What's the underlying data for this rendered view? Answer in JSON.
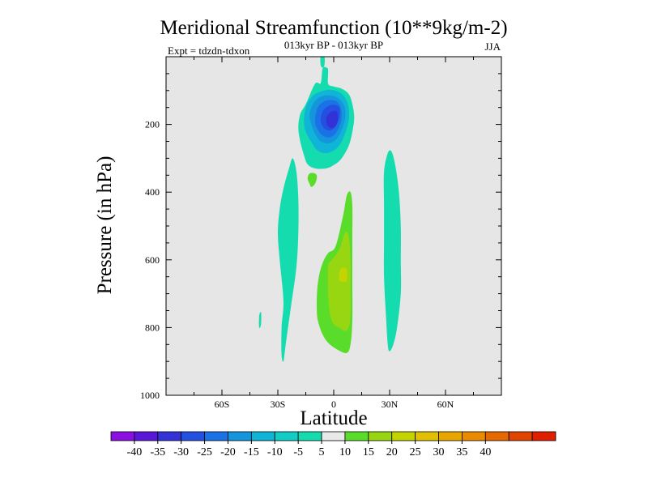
{
  "chart_data": {
    "type": "contour",
    "title": "Meridional Streamfunction (10**9kg/m-2)",
    "subtitle": "013kyr BP - 013kyr BP",
    "left_label": "Expt = tdzdn-tdxon",
    "right_label": "JJA",
    "xlabel": "Latitude",
    "ylabel": "Pressure (in hPa)",
    "xlim": [
      -90,
      90
    ],
    "ylim": [
      1000,
      0
    ],
    "x_ticks": [
      {
        "value": -60,
        "label": "60S"
      },
      {
        "value": -30,
        "label": "30S"
      },
      {
        "value": 0,
        "label": "0"
      },
      {
        "value": 30,
        "label": "30N"
      },
      {
        "value": 60,
        "label": "60N"
      }
    ],
    "y_ticks": [
      {
        "value": 200,
        "label": "200"
      },
      {
        "value": 400,
        "label": "400"
      },
      {
        "value": 600,
        "label": "600"
      },
      {
        "value": 800,
        "label": "800"
      },
      {
        "value": 1000,
        "label": "1000"
      }
    ],
    "levels": [
      "-40",
      "-35",
      "-30",
      "-25",
      "-20",
      "-15",
      "-10",
      "-5",
      "5",
      "10",
      "15",
      "20",
      "25",
      "30",
      "35",
      "40"
    ],
    "colors": [
      "#8a0fe0",
      "#5a17d8",
      "#3232d6",
      "#2350e0",
      "#1a72e6",
      "#1495dc",
      "#10b4d6",
      "#12ccc6",
      "#15dcaf",
      "#e8e8e8",
      "#5add2a",
      "#98d612",
      "#c4d400",
      "#e0c000",
      "#eaa600",
      "#ea8a00",
      "#e66800",
      "#e04400",
      "#e01e00"
    ],
    "background_color": "#e6e6e6",
    "regions": [
      {
        "name": "neg-cell-outer-5",
        "level": "-5",
        "color": "#15dcaf",
        "points": [
          [
            -10,
            80
          ],
          [
            -7,
            78
          ],
          [
            -6,
            35
          ],
          [
            -4,
            32
          ],
          [
            -3,
            40
          ],
          [
            -3,
            80
          ],
          [
            0,
            88
          ],
          [
            4,
            94
          ],
          [
            8,
            110
          ],
          [
            10,
            140
          ],
          [
            11,
            180
          ],
          [
            10,
            222
          ],
          [
            8,
            264
          ],
          [
            4,
            302
          ],
          [
            0,
            320
          ],
          [
            -4,
            330
          ],
          [
            -10,
            330
          ],
          [
            -14,
            318
          ],
          [
            -16,
            290
          ],
          [
            -18,
            250
          ],
          [
            -19,
            210
          ],
          [
            -18,
            170
          ],
          [
            -15,
            140
          ]
        ]
      },
      {
        "name": "neg-cell-10",
        "level": "-10",
        "color": "#10b4d6",
        "points": [
          [
            -15,
            150
          ],
          [
            -12,
            120
          ],
          [
            -8,
            105
          ],
          [
            -3,
            98
          ],
          [
            2,
            102
          ],
          [
            6,
            120
          ],
          [
            8,
            150
          ],
          [
            8,
            190
          ],
          [
            6,
            228
          ],
          [
            3,
            262
          ],
          [
            -1,
            280
          ],
          [
            -5,
            285
          ],
          [
            -9,
            276
          ],
          [
            -12,
            252
          ],
          [
            -15,
            222
          ],
          [
            -16,
            190
          ]
        ]
      },
      {
        "name": "neg-cell-15",
        "level": "-15",
        "color": "#1495dc",
        "points": [
          [
            -12,
            150
          ],
          [
            -9,
            125
          ],
          [
            -5,
            115
          ],
          [
            -1,
            115
          ],
          [
            3,
            125
          ],
          [
            6,
            150
          ],
          [
            6,
            185
          ],
          [
            4,
            220
          ],
          [
            1,
            246
          ],
          [
            -3,
            256
          ],
          [
            -7,
            250
          ],
          [
            -10,
            228
          ],
          [
            -12,
            200
          ],
          [
            -13,
            175
          ]
        ]
      },
      {
        "name": "neg-cell-20",
        "level": "-20",
        "color": "#1a72e6",
        "points": [
          [
            -9,
            155
          ],
          [
            -6,
            135
          ],
          [
            -2,
            128
          ],
          [
            2,
            134
          ],
          [
            4,
            155
          ],
          [
            4,
            188
          ],
          [
            2,
            218
          ],
          [
            -1,
            236
          ],
          [
            -5,
            236
          ],
          [
            -8,
            220
          ],
          [
            -10,
            195
          ]
        ]
      },
      {
        "name": "neg-cell-25",
        "level": "-25",
        "color": "#2350e0",
        "points": [
          [
            -6,
            162
          ],
          [
            -3,
            146
          ],
          [
            0,
            142
          ],
          [
            3,
            150
          ],
          [
            3,
            180
          ],
          [
            1,
            206
          ],
          [
            -2,
            218
          ],
          [
            -5,
            212
          ],
          [
            -7,
            190
          ]
        ]
      },
      {
        "name": "neg-cell-30",
        "level": "-30",
        "color": "#3232d6",
        "points": [
          [
            -3,
            170
          ],
          [
            0,
            160
          ],
          [
            2,
            166
          ],
          [
            2,
            192
          ],
          [
            0,
            210
          ],
          [
            -3,
            206
          ],
          [
            -4,
            186
          ]
        ]
      },
      {
        "name": "top-filament",
        "level": "-5",
        "color": "#15dcaf",
        "points": [
          [
            -7,
            0
          ],
          [
            -5,
            0
          ],
          [
            -5,
            25
          ],
          [
            -6,
            32
          ],
          [
            -7,
            25
          ]
        ]
      },
      {
        "name": "sh-band",
        "level": "-5",
        "color": "#15dcaf",
        "points": [
          [
            -27,
            720
          ],
          [
            -29,
            600
          ],
          [
            -30,
            520
          ],
          [
            -29,
            450
          ],
          [
            -27,
            390
          ],
          [
            -24,
            330
          ],
          [
            -22,
            300
          ],
          [
            -20,
            340
          ],
          [
            -19,
            420
          ],
          [
            -19,
            520
          ],
          [
            -20,
            620
          ],
          [
            -23,
            740
          ],
          [
            -26,
            860
          ],
          [
            -27,
            900
          ],
          [
            -28,
            880
          ],
          [
            -28,
            800
          ]
        ]
      },
      {
        "name": "sh-spot",
        "level": "-5",
        "color": "#15dcaf",
        "points": [
          [
            -40,
            765
          ],
          [
            -39,
            755
          ],
          [
            -39,
            790
          ],
          [
            -40,
            800
          ]
        ]
      },
      {
        "name": "nh-band",
        "level": "-5",
        "color": "#15dcaf",
        "points": [
          [
            27,
            440
          ],
          [
            27,
            340
          ],
          [
            29,
            285
          ],
          [
            31,
            280
          ],
          [
            33,
            320
          ],
          [
            35,
            400
          ],
          [
            36,
            500
          ],
          [
            36,
            600
          ],
          [
            36,
            700
          ],
          [
            34,
            800
          ],
          [
            32,
            850
          ],
          [
            30,
            870
          ],
          [
            29,
            850
          ],
          [
            28,
            760
          ],
          [
            27,
            650
          ],
          [
            27,
            540
          ]
        ]
      },
      {
        "name": "pos-small",
        "level": "5",
        "color": "#5add2a",
        "points": [
          [
            -14,
            360
          ],
          [
            -13,
            345
          ],
          [
            -10,
            345
          ],
          [
            -9,
            355
          ],
          [
            -10,
            375
          ],
          [
            -12,
            385
          ],
          [
            -13,
            375
          ]
        ]
      },
      {
        "name": "pos-cell-5",
        "level": "5",
        "color": "#5add2a",
        "points": [
          [
            -8,
            650
          ],
          [
            -6,
            610
          ],
          [
            -3,
            580
          ],
          [
            1,
            560
          ],
          [
            5,
            470
          ],
          [
            7,
            410
          ],
          [
            9,
            400
          ],
          [
            10,
            440
          ],
          [
            10,
            540
          ],
          [
            10,
            660
          ],
          [
            10,
            780
          ],
          [
            9,
            850
          ],
          [
            7,
            875
          ],
          [
            2,
            865
          ],
          [
            -3,
            845
          ],
          [
            -6,
            820
          ],
          [
            -8,
            790
          ],
          [
            -9,
            760
          ],
          [
            -9,
            700
          ]
        ]
      },
      {
        "name": "pos-cell-10",
        "level": "10",
        "color": "#98d612",
        "points": [
          [
            -3,
            620
          ],
          [
            -1,
            600
          ],
          [
            3,
            570
          ],
          [
            6,
            520
          ],
          [
            8,
            530
          ],
          [
            9,
            600
          ],
          [
            9,
            680
          ],
          [
            9,
            760
          ],
          [
            8,
            800
          ],
          [
            6,
            810
          ],
          [
            3,
            800
          ],
          [
            0,
            790
          ],
          [
            -2,
            760
          ],
          [
            -3,
            700
          ]
        ]
      },
      {
        "name": "pos-cell-15",
        "level": "15",
        "color": "#c4d400",
        "points": [
          [
            3,
            640
          ],
          [
            4,
            625
          ],
          [
            7,
            628
          ],
          [
            7,
            660
          ],
          [
            5,
            665
          ],
          [
            3,
            660
          ]
        ]
      }
    ]
  }
}
